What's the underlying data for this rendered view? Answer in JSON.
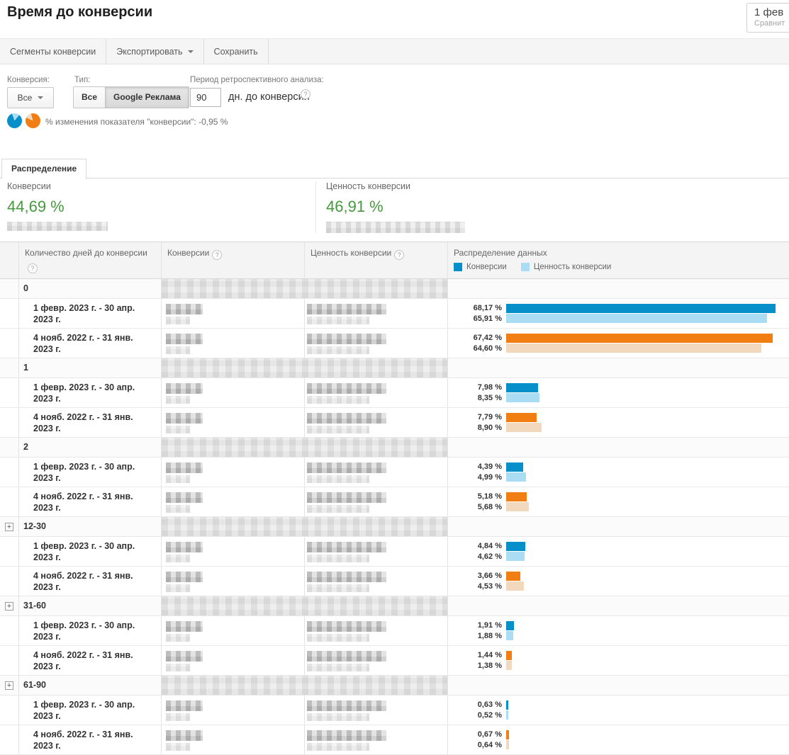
{
  "header": {
    "title": "Время до конверсии",
    "date": "1 фев",
    "compare": "Сравнит"
  },
  "toolbar": {
    "buttons": [
      {
        "label": "Сегменты конверсии"
      },
      {
        "label": "Экспортировать"
      },
      {
        "label": "Сохранить"
      }
    ]
  },
  "filters": {
    "conversion_label": "Конверсия:",
    "conversion_value": "Все",
    "type_label": "Тип:",
    "type_all": "Все",
    "type_google": "Google Реклама",
    "lookback_label": "Период ретроспективного анализа:",
    "lookback_value": "90",
    "lookback_suffix": "дн. до конверсии",
    "change_note": "% изменения показателя \"конверсии\": -0,95 %"
  },
  "tab": {
    "label": "Распределение"
  },
  "summary": {
    "conversions": {
      "label": "Конверсии",
      "value": "44,69 %"
    },
    "conversion_value": {
      "label": "Ценность конверсии",
      "value": "46,91 %"
    }
  },
  "colors": {
    "green": "#469a3e",
    "series": {
      "blue": {
        "dark": "#068fc9",
        "light": "#aaddf3"
      },
      "orange": {
        "dark": "#f07e13",
        "light": "#f2d8bd"
      }
    }
  },
  "table": {
    "columns": {
      "days": "Количество дней до конверсии",
      "conversions": "Конверсии",
      "value": "Ценность конверсии",
      "distribution": "Распределение данных"
    },
    "legend": [
      {
        "label": "Конверсии",
        "palette": "blue",
        "shade": "dark"
      },
      {
        "label": "Ценность конверсии",
        "palette": "blue",
        "shade": "light"
      }
    ],
    "bar_scale_max": 71.2,
    "groups": [
      {
        "label": "0",
        "expandable": false,
        "rows": [
          {
            "period": "1 февр. 2023 г. - 30 апр. 2023 г.",
            "palette": "blue",
            "conv": 68.17,
            "val": 65.91,
            "conv_label": "68,17 %",
            "val_label": "65,91 %"
          },
          {
            "period": "4 нояб. 2022 г. - 31 янв. 2023 г.",
            "palette": "orange",
            "conv": 67.42,
            "val": 64.6,
            "conv_label": "67,42 %",
            "val_label": "64,60 %"
          }
        ]
      },
      {
        "label": "1",
        "expandable": false,
        "rows": [
          {
            "period": "1 февр. 2023 г. - 30 апр. 2023 г.",
            "palette": "blue",
            "conv": 7.98,
            "val": 8.35,
            "conv_label": "7,98 %",
            "val_label": "8,35 %"
          },
          {
            "period": "4 нояб. 2022 г. - 31 янв. 2023 г.",
            "palette": "orange",
            "conv": 7.79,
            "val": 8.9,
            "conv_label": "7,79 %",
            "val_label": "8,90 %"
          }
        ]
      },
      {
        "label": "2",
        "expandable": false,
        "rows": [
          {
            "period": "1 февр. 2023 г. - 30 апр. 2023 г.",
            "palette": "blue",
            "conv": 4.39,
            "val": 4.99,
            "conv_label": "4,39 %",
            "val_label": "4,99 %"
          },
          {
            "period": "4 нояб. 2022 г. - 31 янв. 2023 г.",
            "palette": "orange",
            "conv": 5.18,
            "val": 5.68,
            "conv_label": "5,18 %",
            "val_label": "5,68 %"
          }
        ]
      },
      {
        "label": "12-30",
        "expandable": true,
        "rows": [
          {
            "period": "1 февр. 2023 г. - 30 апр. 2023 г.",
            "palette": "blue",
            "conv": 4.84,
            "val": 4.62,
            "conv_label": "4,84 %",
            "val_label": "4,62 %"
          },
          {
            "period": "4 нояб. 2022 г. - 31 янв. 2023 г.",
            "palette": "orange",
            "conv": 3.66,
            "val": 4.53,
            "conv_label": "3,66 %",
            "val_label": "4,53 %"
          }
        ]
      },
      {
        "label": "31-60",
        "expandable": true,
        "rows": [
          {
            "period": "1 февр. 2023 г. - 30 апр. 2023 г.",
            "palette": "blue",
            "conv": 1.91,
            "val": 1.88,
            "conv_label": "1,91 %",
            "val_label": "1,88 %"
          },
          {
            "period": "4 нояб. 2022 г. - 31 янв. 2023 г.",
            "palette": "orange",
            "conv": 1.44,
            "val": 1.38,
            "conv_label": "1,44 %",
            "val_label": "1,38 %"
          }
        ]
      },
      {
        "label": "61-90",
        "expandable": true,
        "rows": [
          {
            "period": "1 февр. 2023 г. - 30 апр. 2023 г.",
            "palette": "blue",
            "conv": 0.63,
            "val": 0.52,
            "conv_label": "0,63 %",
            "val_label": "0,52 %"
          },
          {
            "period": "4 нояб. 2022 г. - 31 янв. 2023 г.",
            "palette": "orange",
            "conv": 0.67,
            "val": 0.64,
            "conv_label": "0,67 %",
            "val_label": "0,64 %"
          }
        ]
      }
    ]
  },
  "chart_data": {
    "type": "bar",
    "categories": [
      "0",
      "1",
      "2",
      "12-30",
      "31-60",
      "61-90"
    ],
    "series": [
      {
        "name": "Конверсии (1 февр. 2023 г. - 30 апр. 2023 г.)",
        "values": [
          68.17,
          7.98,
          4.39,
          4.84,
          1.91,
          0.63
        ]
      },
      {
        "name": "Ценность конверсии (1 февр. 2023 г. - 30 апр. 2023 г.)",
        "values": [
          65.91,
          8.35,
          4.99,
          4.62,
          1.88,
          0.52
        ]
      },
      {
        "name": "Конверсии (4 нояб. 2022 г. - 31 янв. 2023 г.)",
        "values": [
          67.42,
          7.79,
          5.18,
          3.66,
          1.44,
          0.67
        ]
      },
      {
        "name": "Ценность конверсии (4 нояб. 2022 г. - 31 янв. 2023 г.)",
        "values": [
          64.6,
          8.9,
          5.68,
          4.53,
          1.38,
          0.64
        ]
      }
    ],
    "title": "Распределение данных",
    "xlabel": "Количество дней до конверсии",
    "ylabel": "%",
    "ylim": [
      0,
      71.2
    ],
    "legend_position": "top",
    "grid": false
  }
}
